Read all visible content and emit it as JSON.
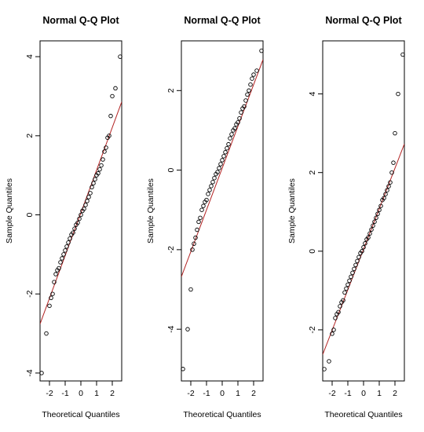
{
  "chart_data": [
    {
      "type": "scatter",
      "title": "Normal Q-Q Plot",
      "xlabel": "Theoretical Quantiles",
      "ylabel": "Sample Quantiles",
      "xlim": [
        -2.6,
        2.6
      ],
      "ylim": [
        -4.2,
        4.4
      ],
      "xticks": [
        -2,
        -1,
        0,
        1,
        2
      ],
      "xtick_labels": [
        "-2",
        "-1",
        "0",
        "1",
        "2"
      ],
      "yticks": [
        -4,
        -2,
        0,
        2,
        4
      ],
      "ytick_labels": [
        "-4",
        "-2",
        "0",
        "2",
        "4"
      ],
      "ref_line": {
        "intercept": 0.05,
        "slope": 1.08,
        "color": "#b22222"
      },
      "grid": false,
      "points": {
        "x": [
          -2.5,
          -2.2,
          -2.0,
          -1.9,
          -1.8,
          -1.7,
          -1.6,
          -1.5,
          -1.4,
          -1.3,
          -1.2,
          -1.1,
          -1.0,
          -0.9,
          -0.8,
          -0.7,
          -0.6,
          -0.5,
          -0.4,
          -0.3,
          -0.2,
          -0.1,
          0.0,
          0.1,
          0.2,
          0.3,
          0.4,
          0.5,
          0.6,
          0.7,
          0.8,
          0.9,
          1.0,
          1.1,
          1.2,
          1.3,
          1.4,
          1.5,
          1.6,
          1.7,
          1.8,
          1.9,
          2.0,
          2.2,
          2.5
        ],
        "y": [
          -4.0,
          -3.0,
          -2.3,
          -2.1,
          -2.0,
          -1.7,
          -1.5,
          -1.4,
          -1.35,
          -1.2,
          -1.1,
          -1.0,
          -0.9,
          -0.8,
          -0.7,
          -0.6,
          -0.5,
          -0.45,
          -0.35,
          -0.25,
          -0.2,
          -0.1,
          0.0,
          0.1,
          0.15,
          0.25,
          0.35,
          0.45,
          0.55,
          0.7,
          0.8,
          0.9,
          1.0,
          1.05,
          1.15,
          1.25,
          1.4,
          1.6,
          1.7,
          1.95,
          2.0,
          2.5,
          3.0,
          3.2,
          4.0
        ]
      }
    },
    {
      "type": "scatter",
      "title": "Normal Q-Q Plot",
      "xlabel": "Theoretical Quantiles",
      "ylabel": "Sample Quantiles",
      "xlim": [
        -2.6,
        2.6
      ],
      "ylim": [
        -5.3,
        3.25
      ],
      "xticks": [
        -2,
        -1,
        0,
        1,
        2
      ],
      "xtick_labels": [
        "-2",
        "-1",
        "0",
        "1",
        "2"
      ],
      "yticks": [
        -4,
        -2,
        0,
        2
      ],
      "ytick_labels": [
        "-4",
        "-2",
        "0",
        "2"
      ],
      "ref_line": {
        "intercept": 0.05,
        "slope": 1.05,
        "color": "#b22222"
      },
      "grid": false,
      "points": {
        "x": [
          -2.5,
          -2.2,
          -2.0,
          -1.9,
          -1.8,
          -1.7,
          -1.6,
          -1.5,
          -1.4,
          -1.3,
          -1.2,
          -1.1,
          -1.0,
          -0.9,
          -0.8,
          -0.7,
          -0.6,
          -0.5,
          -0.4,
          -0.3,
          -0.2,
          -0.1,
          0.0,
          0.1,
          0.2,
          0.3,
          0.4,
          0.5,
          0.6,
          0.7,
          0.8,
          0.9,
          1.0,
          1.1,
          1.2,
          1.3,
          1.4,
          1.5,
          1.6,
          1.7,
          1.8,
          1.9,
          2.0,
          2.2,
          2.5
        ],
        "y": [
          -5.0,
          -4.0,
          -3.0,
          -2.0,
          -1.85,
          -1.7,
          -1.5,
          -1.3,
          -1.2,
          -1.0,
          -0.9,
          -0.8,
          -0.75,
          -0.6,
          -0.5,
          -0.4,
          -0.3,
          -0.2,
          -0.1,
          -0.05,
          0.05,
          0.15,
          0.25,
          0.35,
          0.45,
          0.55,
          0.65,
          0.8,
          0.9,
          1.0,
          1.05,
          1.15,
          1.2,
          1.3,
          1.45,
          1.55,
          1.6,
          1.75,
          1.9,
          2.0,
          2.15,
          2.3,
          2.4,
          2.5,
          3.0
        ]
      }
    },
    {
      "type": "scatter",
      "title": "Normal Q-Q Plot",
      "xlabel": "Theoretical Quantiles",
      "ylabel": "Sample Quantiles",
      "xlim": [
        -2.6,
        2.6
      ],
      "ylim": [
        -3.3,
        5.35
      ],
      "xticks": [
        -2,
        -1,
        0,
        1,
        2
      ],
      "xtick_labels": [
        "-2",
        "-1",
        "0",
        "1",
        "2"
      ],
      "yticks": [
        -2,
        0,
        2,
        4
      ],
      "ytick_labels": [
        "-2",
        "0",
        "2",
        "4"
      ],
      "ref_line": {
        "intercept": 0.05,
        "slope": 1.03,
        "color": "#b22222"
      },
      "grid": false,
      "points": {
        "x": [
          -2.5,
          -2.2,
          -2.0,
          -1.9,
          -1.8,
          -1.7,
          -1.6,
          -1.5,
          -1.4,
          -1.3,
          -1.2,
          -1.1,
          -1.0,
          -0.9,
          -0.8,
          -0.7,
          -0.6,
          -0.5,
          -0.4,
          -0.3,
          -0.2,
          -0.1,
          0.0,
          0.1,
          0.2,
          0.3,
          0.4,
          0.5,
          0.6,
          0.7,
          0.8,
          0.9,
          1.0,
          1.1,
          1.2,
          1.3,
          1.4,
          1.5,
          1.6,
          1.7,
          1.8,
          1.9,
          2.0,
          2.2,
          2.5
        ],
        "y": [
          -3.0,
          -2.8,
          -2.1,
          -2.0,
          -1.7,
          -1.6,
          -1.55,
          -1.4,
          -1.3,
          -1.25,
          -1.05,
          -0.95,
          -0.85,
          -0.75,
          -0.65,
          -0.55,
          -0.45,
          -0.35,
          -0.25,
          -0.15,
          -0.05,
          0.0,
          0.1,
          0.2,
          0.3,
          0.35,
          0.45,
          0.55,
          0.65,
          0.75,
          0.85,
          0.95,
          1.05,
          1.15,
          1.3,
          1.35,
          1.45,
          1.55,
          1.65,
          1.75,
          2.0,
          2.25,
          3.0,
          4.0,
          5.0
        ]
      }
    }
  ]
}
